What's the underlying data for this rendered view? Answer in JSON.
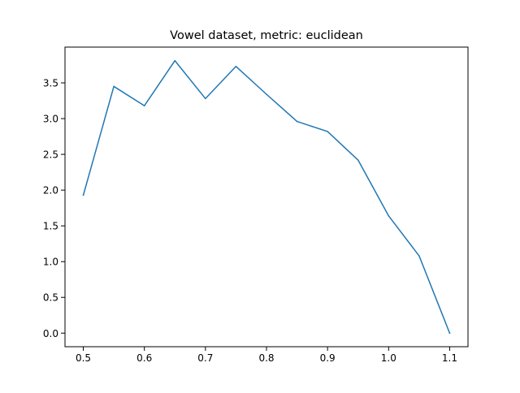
{
  "chart_data": {
    "type": "line",
    "title": "Vowel dataset, metric: euclidean",
    "xlabel": "",
    "ylabel": "",
    "x": [
      0.5,
      0.55,
      0.6,
      0.65,
      0.7,
      0.75,
      0.8,
      0.85,
      0.9,
      0.95,
      1.0,
      1.05,
      1.1
    ],
    "series": [
      {
        "values": [
          1.93,
          3.45,
          3.18,
          3.81,
          3.28,
          3.73,
          3.34,
          2.96,
          2.82,
          2.42,
          1.64,
          1.08,
          0.0
        ],
        "color": "#1f77b4"
      }
    ],
    "xticks": [
      "0.5",
      "0.6",
      "0.7",
      "0.8",
      "0.9",
      "1.0",
      "1.1"
    ],
    "yticks": [
      "0.0",
      "0.5",
      "1.0",
      "1.5",
      "2.0",
      "2.5",
      "3.0",
      "3.5"
    ],
    "xlim": [
      0.47,
      1.13
    ],
    "ylim": [
      -0.19,
      4.0
    ],
    "grid": false,
    "legend": "none"
  }
}
